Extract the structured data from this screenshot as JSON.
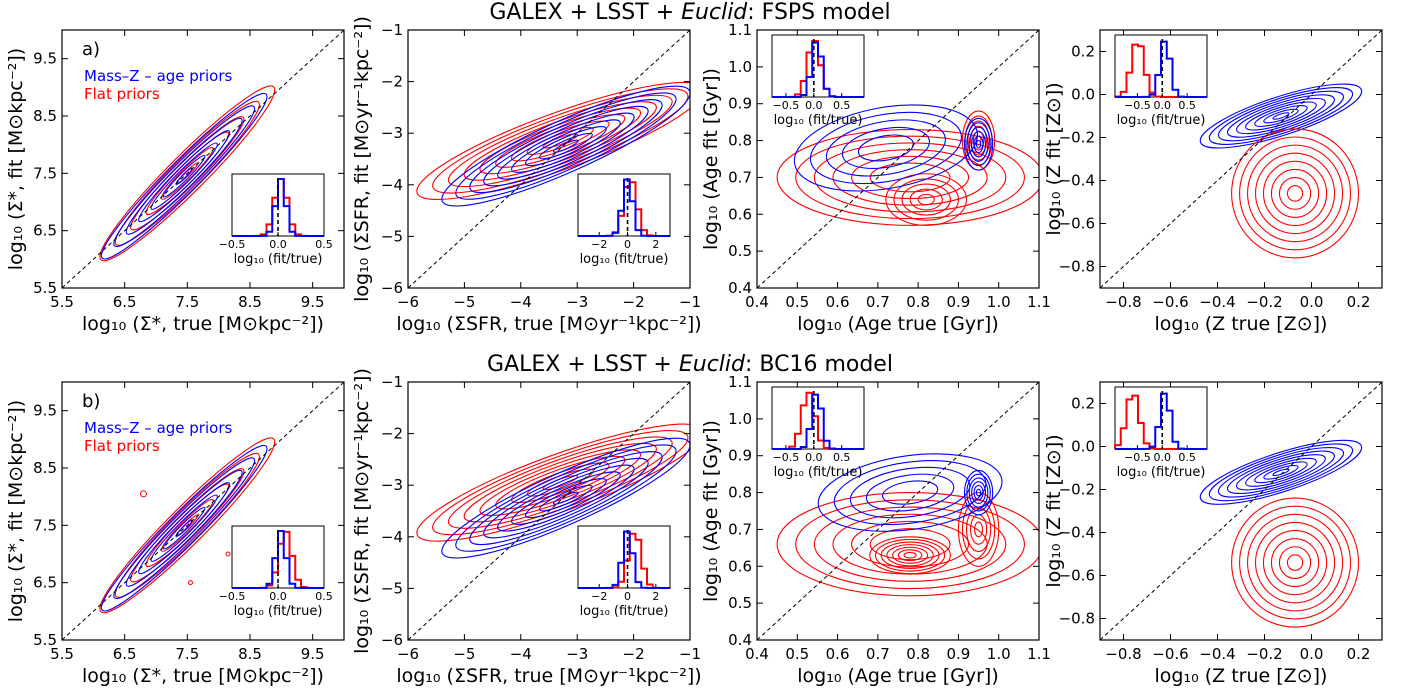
{
  "figure_titles": [
    {
      "prefix": "GALEX + LSST + ",
      "italic": "Euclid",
      "suffix": ": FSPS model"
    },
    {
      "prefix": "GALEX + LSST + ",
      "italic": "Euclid",
      "suffix": ": BC16 model"
    }
  ],
  "legend": {
    "blue_label": "Mass–Z – age priors",
    "red_label": "Flat priors",
    "blue_color": "#0000ff",
    "red_color": "#ff0000"
  },
  "inset_xlabel": "log₁₀ (fit/true)",
  "chart_data": [
    {
      "row": 0,
      "col": 0,
      "type": "contour",
      "panel_label": "a)",
      "xlabel": "log₁₀ (Σ*, true [M⊙kpc⁻²])",
      "ylabel": "log₁₀ (Σ*, fit [M⊙kpc⁻²])",
      "xlim": [
        5.5,
        10.0
      ],
      "ylim": [
        5.5,
        10.0
      ],
      "xticks": [
        "5.5",
        "6.5",
        "7.5",
        "8.5",
        "9.5"
      ],
      "yticks": [
        "5.5",
        "6.5",
        "7.5",
        "8.5",
        "9.5"
      ],
      "one_to_one_line": true,
      "series": [
        {
          "name": "Mass–Z – age priors",
          "peak": [
            7.3,
            7.3
          ]
        },
        {
          "name": "Flat priors",
          "peak": [
            7.3,
            7.3
          ]
        }
      ],
      "inset": {
        "xlim": [
          -0.5,
          0.5
        ],
        "xticks": [
          "−0.5",
          "0.0",
          "0.5"
        ],
        "blue_center": 0.0,
        "red_center": 0.0
      }
    },
    {
      "row": 0,
      "col": 1,
      "type": "contour",
      "xlabel": "log₁₀ (ΣSFR, true [M⊙yr⁻¹kpc⁻²])",
      "ylabel": "log₁₀ (ΣSFR, fit [M⊙yr⁻¹kpc⁻²])",
      "xlim": [
        -6,
        -1
      ],
      "ylim": [
        -6,
        -1
      ],
      "xticks": [
        "−6",
        "−5",
        "−4",
        "−3",
        "−2",
        "−1"
      ],
      "yticks": [
        "−6",
        "−5",
        "−4",
        "−3",
        "−2",
        "−1"
      ],
      "one_to_one_line": true,
      "series": [
        {
          "name": "Mass–Z – age priors",
          "peak": [
            -2.7,
            -2.9
          ]
        },
        {
          "name": "Flat priors",
          "peak": [
            -2.7,
            -2.8
          ]
        }
      ],
      "inset": {
        "xlim": [
          -3.5,
          3
        ],
        "xticks": [
          "−2",
          "0",
          "2"
        ],
        "blue_center": -0.2,
        "red_center": 0.0
      }
    },
    {
      "row": 0,
      "col": 2,
      "type": "contour",
      "xlabel": "log₁₀ (Age true [Gyr])",
      "ylabel": "log₁₀ (Age fit [Gyr])",
      "xlim": [
        0.4,
        1.1
      ],
      "ylim": [
        0.4,
        1.1
      ],
      "xticks": [
        "0.4",
        "0.5",
        "0.6",
        "0.7",
        "0.8",
        "0.9",
        "1.0",
        "1.1"
      ],
      "yticks": [
        "0.4",
        "0.5",
        "0.6",
        "0.7",
        "0.8",
        "0.9",
        "1.0",
        "1.1"
      ],
      "one_to_one_line": true,
      "series": [
        {
          "name": "Mass–Z – age priors",
          "peak": [
            0.95,
            0.79
          ]
        },
        {
          "name": "Flat priors",
          "peak": [
            0.95,
            0.8
          ]
        }
      ],
      "inset": {
        "xlim": [
          -0.75,
          0.9
        ],
        "xticks": [
          "−0.5",
          "0.0",
          "0.5"
        ],
        "blue_center": 0.0,
        "red_center": -0.05
      }
    },
    {
      "row": 0,
      "col": 3,
      "type": "contour",
      "xlabel": "log₁₀ (Z true [Z⊙])",
      "ylabel": "log₁₀ (Z fit [Z⊙])",
      "xlim": [
        -0.9,
        0.3
      ],
      "ylim": [
        -0.9,
        0.3
      ],
      "xticks": [
        "−0.8",
        "−0.6",
        "−0.4",
        "−0.2",
        "0.0",
        "0.2"
      ],
      "yticks": [
        "−0.8",
        "−0.6",
        "−0.4",
        "−0.2",
        "0.0",
        "0.2"
      ],
      "one_to_one_line": true,
      "series": [
        {
          "name": "Mass–Z – age priors",
          "peak": [
            -0.05,
            -0.08
          ]
        },
        {
          "name": "Flat priors",
          "peak": [
            -0.05,
            -0.58
          ]
        }
      ],
      "inset": {
        "xlim": [
          -0.95,
          0.9
        ],
        "xticks": [
          "−0.5",
          "0.0",
          "0.5"
        ],
        "blue_center": 0.0,
        "red_center": -0.55
      }
    },
    {
      "row": 1,
      "col": 0,
      "type": "contour",
      "panel_label": "b)",
      "xlabel": "log₁₀ (Σ*, true [M⊙kpc⁻²])",
      "ylabel": "log₁₀ (Σ*, fit [M⊙kpc⁻²])",
      "xlim": [
        5.5,
        10.0
      ],
      "ylim": [
        5.5,
        10.0
      ],
      "xticks": [
        "5.5",
        "6.5",
        "7.5",
        "8.5",
        "9.5"
      ],
      "yticks": [
        "5.5",
        "6.5",
        "7.5",
        "8.5",
        "9.5"
      ],
      "one_to_one_line": true,
      "series": [
        {
          "name": "Mass–Z – age priors",
          "peak": [
            7.3,
            7.3
          ]
        },
        {
          "name": "Flat priors",
          "peak": [
            7.3,
            7.3
          ]
        }
      ],
      "inset": {
        "xlim": [
          -0.5,
          0.5
        ],
        "xticks": [
          "−0.5",
          "0.0",
          "0.5"
        ],
        "blue_center": 0.0,
        "red_center": 0.05
      }
    },
    {
      "row": 1,
      "col": 1,
      "type": "contour",
      "xlabel": "log₁₀ (ΣSFR, true [M⊙yr⁻¹kpc⁻²])",
      "ylabel": "log₁₀ (ΣSFR, fit [M⊙yr⁻¹kpc⁻²])",
      "xlim": [
        -6,
        -1
      ],
      "ylim": [
        -6,
        -1
      ],
      "xticks": [
        "−6",
        "−5",
        "−4",
        "−3",
        "−2",
        "−1"
      ],
      "yticks": [
        "−6",
        "−5",
        "−4",
        "−3",
        "−2",
        "−1"
      ],
      "one_to_one_line": true,
      "series": [
        {
          "name": "Mass–Z – age priors",
          "peak": [
            -2.7,
            -2.9
          ]
        },
        {
          "name": "Flat priors",
          "peak": [
            -2.7,
            -2.6
          ]
        }
      ],
      "inset": {
        "xlim": [
          -3.5,
          3
        ],
        "xticks": [
          "−2",
          "0",
          "2"
        ],
        "blue_center": -0.2,
        "red_center": 0.3
      }
    },
    {
      "row": 1,
      "col": 2,
      "type": "contour",
      "xlabel": "log₁₀ (Age true [Gyr])",
      "ylabel": "log₁₀ (Age fit [Gyr])",
      "xlim": [
        0.4,
        1.1
      ],
      "ylim": [
        0.4,
        1.1
      ],
      "xticks": [
        "0.4",
        "0.5",
        "0.6",
        "0.7",
        "0.8",
        "0.9",
        "1.0",
        "1.1"
      ],
      "yticks": [
        "0.4",
        "0.5",
        "0.6",
        "0.7",
        "0.8",
        "0.9",
        "1.0",
        "1.1"
      ],
      "one_to_one_line": true,
      "series": [
        {
          "name": "Mass–Z – age priors",
          "peak": [
            0.95,
            0.8
          ]
        },
        {
          "name": "Flat priors",
          "peak": [
            0.78,
            0.63
          ]
        }
      ],
      "inset": {
        "xlim": [
          -0.75,
          0.9
        ],
        "xticks": [
          "−0.5",
          "0.0",
          "0.5"
        ],
        "blue_center": 0.0,
        "red_center": -0.15
      }
    },
    {
      "row": 1,
      "col": 3,
      "type": "contour",
      "xlabel": "log₁₀ (Z true [Z⊙])",
      "ylabel": "log₁₀ (Z fit [Z⊙])",
      "xlim": [
        -0.9,
        0.3
      ],
      "ylim": [
        -0.9,
        0.3
      ],
      "xticks": [
        "−0.8",
        "−0.6",
        "−0.4",
        "−0.2",
        "0.0",
        "0.2"
      ],
      "yticks": [
        "−0.8",
        "−0.6",
        "−0.4",
        "−0.2",
        "0.0",
        "0.2"
      ],
      "one_to_one_line": true,
      "series": [
        {
          "name": "Mass–Z – age priors",
          "peak": [
            -0.05,
            -0.1
          ]
        },
        {
          "name": "Flat priors",
          "peak": [
            -0.05,
            -0.66
          ]
        }
      ],
      "inset": {
        "xlim": [
          -0.95,
          0.9
        ],
        "xticks": [
          "−0.5",
          "0.0",
          "0.5"
        ],
        "blue_center": 0.0,
        "red_center": -0.65
      }
    }
  ]
}
